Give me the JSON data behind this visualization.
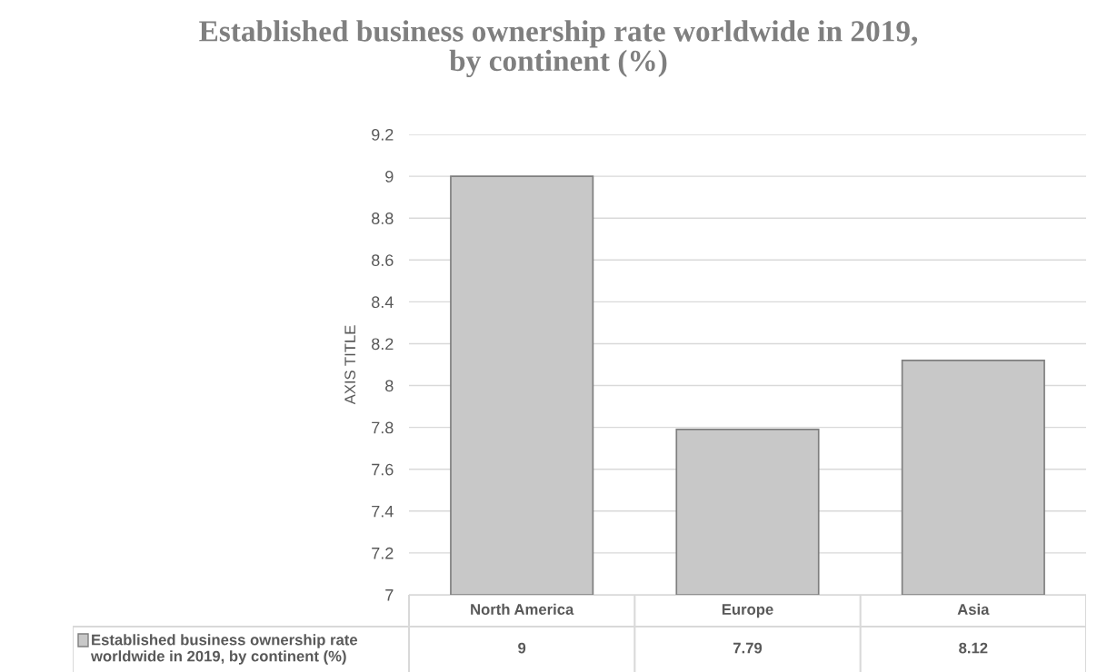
{
  "chart_data": {
    "type": "bar",
    "title": "Established business ownership rate worldwide in 2019, by continent (%)",
    "ylabel": "AXIS TITLE",
    "categories": [
      "North America",
      "Europe",
      "Asia"
    ],
    "series": [
      {
        "name": "Established business ownership rate worldwide in 2019, by continent (%)",
        "color": "#c8c8c8",
        "values": [
          9,
          7.79,
          8.12
        ]
      }
    ],
    "ylim": [
      7,
      9.2
    ],
    "yticks": [
      7,
      7.2,
      7.4,
      7.6,
      7.8,
      8,
      8.2,
      8.4,
      8.6,
      8.8,
      9,
      9.2
    ],
    "grid": "y",
    "data_labels": true,
    "legend": "bottom"
  }
}
